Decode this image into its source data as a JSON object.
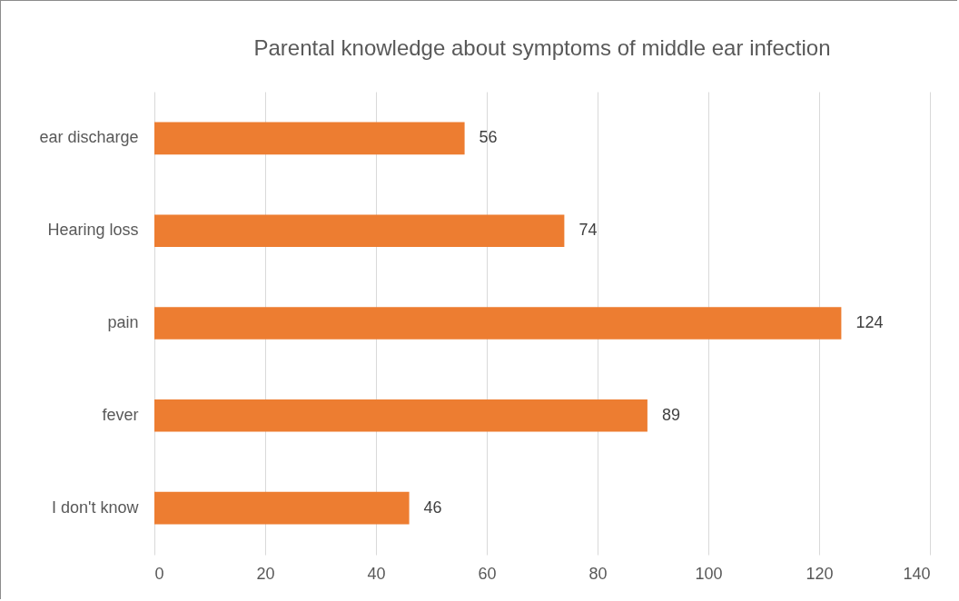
{
  "chart_data": {
    "type": "bar",
    "orientation": "horizontal",
    "title": "Parental knowledge about symptoms of middle ear infection",
    "categories": [
      "ear discharge",
      "Hearing loss",
      "pain",
      "fever",
      "I don't know"
    ],
    "values": [
      56,
      74,
      124,
      89,
      46
    ],
    "color": "#ed7d31",
    "xlim": [
      0,
      140
    ],
    "xticks": [
      0,
      20,
      40,
      60,
      80,
      100,
      120,
      140
    ],
    "grid": "x",
    "data_labels": true
  }
}
